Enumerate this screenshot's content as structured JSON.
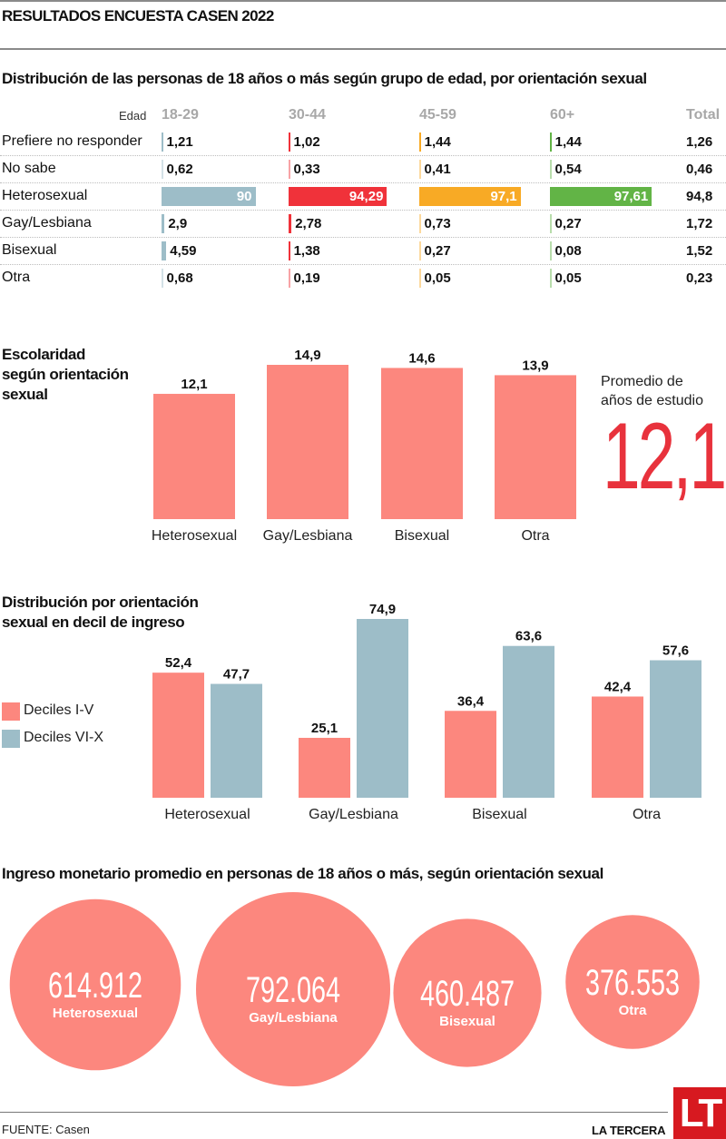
{
  "header": {
    "title": "RESULTADOS ENCUESTA CASEN 2022"
  },
  "colors": {
    "age_18_29": "#9dbdc8",
    "age_30_44": "#f0323a",
    "age_45_59": "#f8aa25",
    "age_60_plus": "#62b446",
    "salmon": "#fc877e",
    "blue_grey": "#9dbdc8",
    "avg_red": "#e8323c",
    "brand_red": "#d71920"
  },
  "table": {
    "title": "Distribución de las personas de 18 años o más según grupo de edad, por orientación sexual",
    "edad_label": "Edad",
    "columns": [
      "18-29",
      "30-44",
      "45-59",
      "60+"
    ],
    "total_label": "Total",
    "rows": [
      {
        "label": "Prefiere no responder",
        "values": [
          "1,21",
          "1,02",
          "1,44",
          "1,44"
        ],
        "nums": [
          1.21,
          1.02,
          1.44,
          1.44
        ],
        "total": "1,26"
      },
      {
        "label": "No sabe",
        "values": [
          "0,62",
          "0,33",
          "0,41",
          "0,54"
        ],
        "nums": [
          0.62,
          0.33,
          0.41,
          0.54
        ],
        "total": "0,46"
      },
      {
        "label": "Heterosexual",
        "values": [
          "90",
          "94,29",
          "97,1",
          "97,61"
        ],
        "nums": [
          90,
          94.29,
          97.1,
          97.61
        ],
        "total": "94,8"
      },
      {
        "label": "Gay/Lesbiana",
        "values": [
          "2,9",
          "2,78",
          "0,73",
          "0,27"
        ],
        "nums": [
          2.9,
          2.78,
          0.73,
          0.27
        ],
        "total": "1,72"
      },
      {
        "label": "Bisexual",
        "values": [
          "4,59",
          "1,38",
          "0,27",
          "0,08"
        ],
        "nums": [
          4.59,
          1.38,
          0.27,
          0.08
        ],
        "total": "1,52"
      },
      {
        "label": "Otra",
        "values": [
          "0,68",
          "0,19",
          "0,05",
          "0,05"
        ],
        "nums": [
          0.68,
          0.19,
          0.05,
          0.05
        ],
        "total": "0,23"
      }
    ]
  },
  "escolaridad": {
    "title_lines": [
      "Escolaridad",
      "según orientación",
      "sexual"
    ],
    "avg_label_lines": [
      "Promedio de",
      "años de estudio"
    ],
    "avg_value": "12,1"
  },
  "decil": {
    "title_lines": [
      "Distribución por orientación",
      "sexual en decil de ingreso"
    ],
    "legend": [
      "Deciles I-V",
      "Deciles VI-X"
    ]
  },
  "ingreso": {
    "title": "Ingreso monetario promedio en personas de 18 años o más, según orientación sexual"
  },
  "chart_data": [
    {
      "type": "table",
      "title": "Distribución de las personas de 18 años o más según grupo de edad, por orientación sexual",
      "columns": [
        "18-29",
        "30-44",
        "45-59",
        "60+",
        "Total"
      ],
      "rows": {
        "Prefiere no responder": [
          1.21,
          1.02,
          1.44,
          1.44,
          1.26
        ],
        "No sabe": [
          0.62,
          0.33,
          0.41,
          0.54,
          0.46
        ],
        "Heterosexual": [
          90,
          94.29,
          97.1,
          97.61,
          94.8
        ],
        "Gay/Lesbiana": [
          2.9,
          2.78,
          0.73,
          0.27,
          1.72
        ],
        "Bisexual": [
          4.59,
          1.38,
          0.27,
          0.08,
          1.52
        ],
        "Otra": [
          0.68,
          0.19,
          0.05,
          0.05,
          0.23
        ]
      },
      "bar_scale_max": 100
    },
    {
      "type": "bar",
      "title": "Escolaridad según orientación sexual",
      "categories": [
        "Heterosexual",
        "Gay/Lesbiana",
        "Bisexual",
        "Otra"
      ],
      "values": [
        12.1,
        14.9,
        14.6,
        13.9
      ],
      "labels": [
        "12,1",
        "14,9",
        "14,6",
        "13,9"
      ],
      "ylim": [
        0,
        16
      ],
      "grid": false,
      "xlabel": "",
      "ylabel": ""
    },
    {
      "type": "bar",
      "title": "Distribución por orientación sexual en decil de ingreso",
      "categories": [
        "Heterosexual",
        "Gay/Lesbiana",
        "Bisexual",
        "Otra"
      ],
      "series": [
        {
          "name": "Deciles I-V",
          "values": [
            52.4,
            25.1,
            36.4,
            42.4
          ],
          "labels": [
            "52,4",
            "25,1",
            "36,4",
            "42,4"
          ]
        },
        {
          "name": "Deciles VI-X",
          "values": [
            47.7,
            74.9,
            63.6,
            57.6
          ],
          "labels": [
            "47,7",
            "74,9",
            "63,6",
            "57,6"
          ]
        }
      ],
      "ylim": [
        0,
        80
      ],
      "legend": "left",
      "grid": false
    },
    {
      "type": "scatter",
      "subtype": "bubble",
      "title": "Ingreso monetario promedio en personas de 18 años o más, según orientación sexual",
      "categories": [
        "Heterosexual",
        "Gay/Lesbiana",
        "Bisexual",
        "Otra"
      ],
      "values": [
        614912,
        792064,
        460487,
        376553
      ],
      "labels": [
        "614.912",
        "792.064",
        "460.487",
        "376.553"
      ]
    }
  ],
  "footer": {
    "source": "FUENTE: Casen",
    "brand": "LA TERCERA",
    "logo": "LT"
  }
}
